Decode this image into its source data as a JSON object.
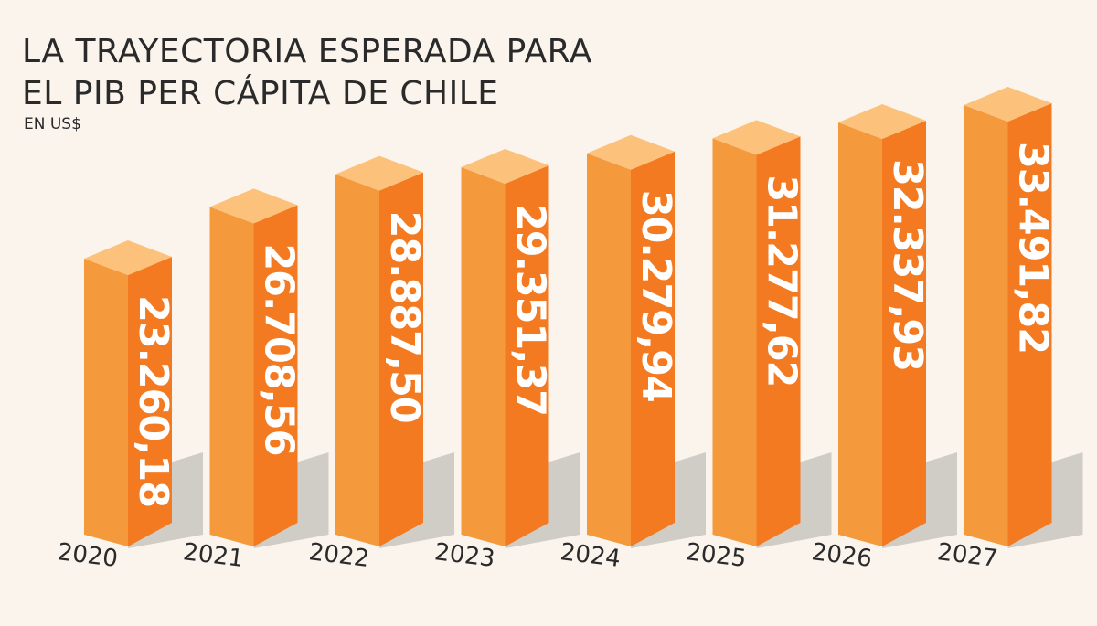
{
  "title": {
    "line1": "LA TRAYECTORIA ESPERADA PARA",
    "line2": "EL PIB PER CÁPITA DE CHILE",
    "unit": "EN US$"
  },
  "colors": {
    "front": "#f47a22",
    "side": "#f49a3c",
    "top": "#fcc17a",
    "shadow": "#c8c4c0",
    "background": "#fbf4ec"
  },
  "chart_data": {
    "type": "bar",
    "title": "LA TRAYECTORIA ESPERADA PARA EL PIB PER CÁPITA DE CHILE",
    "subtitle": "EN US$",
    "categories": [
      "2020",
      "2021",
      "2022",
      "2023",
      "2024",
      "2025",
      "2026",
      "2027"
    ],
    "values": [
      23260.18,
      26708.56,
      28887.5,
      29351.37,
      30279.94,
      31277.62,
      32337.93,
      33491.82
    ],
    "labels": [
      "23.260,18",
      "26.708,56",
      "28.887,50",
      "29.351,37",
      "30.279,94",
      "31.277,62",
      "32.337,93",
      "33.491,82"
    ],
    "style": "3d-bar",
    "grid": false,
    "legend": "none"
  }
}
